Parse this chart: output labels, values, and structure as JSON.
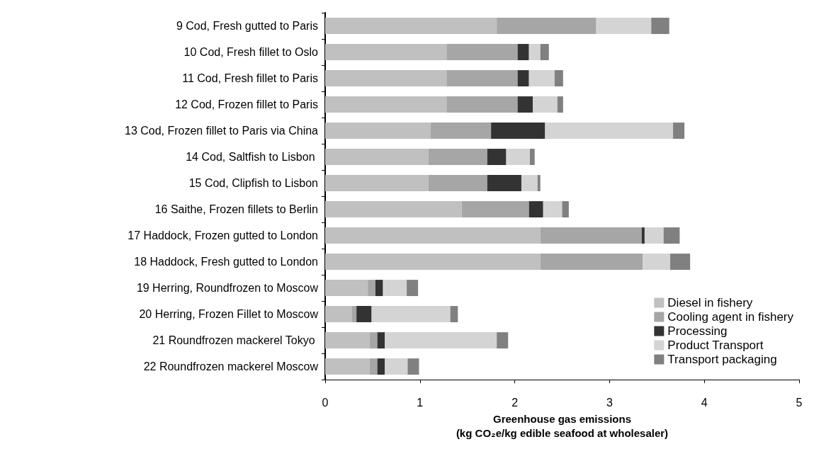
{
  "chart_data": {
    "type": "bar",
    "orientation": "horizontal",
    "stacked": true,
    "xlabel": "Greenhouse gas emissions\n(kg CO₂e/kg edible seafood at wholesaler)",
    "categories": [
      "9 Cod, Fresh gutted to Paris",
      "10 Cod, Fresh fillet to Oslo",
      "11 Cod, Fresh fillet to Paris",
      "12 Cod, Frozen fillet to Paris",
      "13 Cod, Frozen fillet to Paris via China",
      "14 Cod, Saltfish to Lisbon ",
      "15 Cod, Clipfish to Lisbon",
      "16 Saithe, Frozen fillets to Berlin",
      "17 Haddock, Frozen gutted to London",
      "18 Haddock, Fresh gutted to London",
      "19 Herring, Roundfrozen to Moscow",
      "20 Herring, Frozen Fillet to Moscow",
      "21 Roundfrozen mackerel Tokyo ",
      "22 Roundfrozen mackerel Moscow"
    ],
    "series": [
      {
        "name": "Diesel in fishery",
        "color": "#c0c0c0",
        "values": [
          1.81,
          1.28,
          1.28,
          1.28,
          1.11,
          1.09,
          1.09,
          1.44,
          2.27,
          2.27,
          0.45,
          0.28,
          0.47,
          0.47
        ]
      },
      {
        "name": "Cooling agent in fishery",
        "color": "#a6a6a6",
        "values": [
          1.05,
          0.75,
          0.75,
          0.75,
          0.64,
          0.62,
          0.62,
          0.71,
          1.07,
          1.08,
          0.08,
          0.05,
          0.08,
          0.08
        ]
      },
      {
        "name": "Processing",
        "color": "#333333",
        "values": [
          0,
          0.12,
          0.12,
          0.16,
          0.57,
          0.2,
          0.36,
          0.15,
          0.03,
          0,
          0.08,
          0.16,
          0.08,
          0.08
        ]
      },
      {
        "name": "Product Transport",
        "color": "#d4d4d4",
        "values": [
          0.58,
          0.12,
          0.27,
          0.26,
          1.35,
          0.25,
          0.17,
          0.2,
          0.2,
          0.29,
          0.25,
          0.83,
          1.18,
          0.24
        ]
      },
      {
        "name": "Transport packaging",
        "color": "#808080",
        "values": [
          0.19,
          0.09,
          0.09,
          0.06,
          0.12,
          0.05,
          0.03,
          0.07,
          0.17,
          0.21,
          0.12,
          0.08,
          0.12,
          0.12
        ]
      }
    ],
    "xlim": [
      0,
      5
    ],
    "xticks": [
      0,
      1,
      2,
      3,
      4,
      5
    ],
    "grid": false,
    "legend": "bottom right"
  }
}
